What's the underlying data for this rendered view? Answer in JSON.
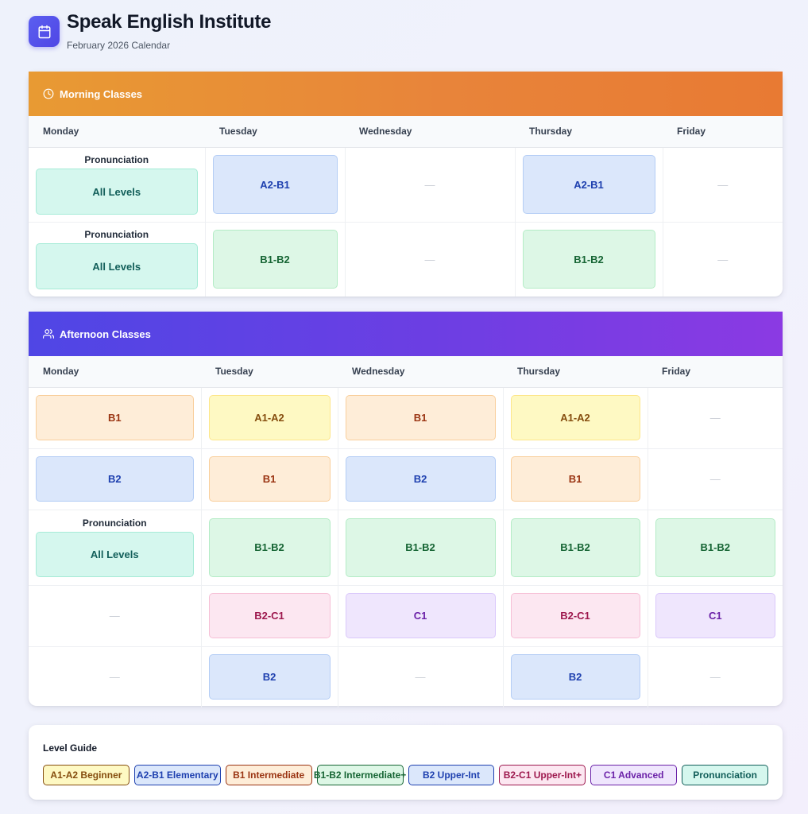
{
  "app": {
    "title": "Speak English Institute",
    "subtitle": "February 2026 Calendar",
    "accent": "#4f46e5"
  },
  "days": [
    "Monday",
    "Tuesday",
    "Wednesday",
    "Thursday",
    "Friday"
  ],
  "morning": {
    "title": "Morning Classes",
    "icon": "clock-icon",
    "gradient": [
      "#e89a33",
      "#e87a33"
    ],
    "rows": [
      [
        {
          "label": "Pronunciation",
          "level": "All Levels",
          "type": "pr"
        },
        {
          "level": "A2-B1",
          "type": "a2"
        },
        {
          "empty": "—"
        },
        {
          "level": "A2-B1",
          "type": "a2"
        },
        {
          "empty": "—"
        }
      ],
      [
        {
          "label": "Pronunciation",
          "level": "All Levels",
          "type": "pr"
        },
        {
          "level": "B1-B2",
          "type": "b1b2"
        },
        {
          "empty": "—"
        },
        {
          "level": "B1-B2",
          "type": "b1b2"
        },
        {
          "empty": "—"
        }
      ]
    ]
  },
  "afternoon": {
    "title": "Afternoon Classes",
    "icon": "users-icon",
    "gradient": [
      "#4f46e5",
      "#8b3ae3"
    ],
    "rows": [
      [
        {
          "level": "B1",
          "type": "b1"
        },
        {
          "level": "A1-A2",
          "type": "a1"
        },
        {
          "level": "B1",
          "type": "b1"
        },
        {
          "level": "A1-A2",
          "type": "a1"
        },
        {
          "empty": "—"
        }
      ],
      [
        {
          "level": "B2",
          "type": "b2"
        },
        {
          "level": "B1",
          "type": "b1"
        },
        {
          "level": "B2",
          "type": "b2"
        },
        {
          "level": "B1",
          "type": "b1"
        },
        {
          "empty": "—"
        }
      ],
      [
        {
          "label": "Pronunciation",
          "level": "All Levels",
          "type": "pr"
        },
        {
          "level": "B1-B2",
          "type": "b1b2"
        },
        {
          "level": "B1-B2",
          "type": "b1b2"
        },
        {
          "level": "B1-B2",
          "type": "b1b2"
        },
        {
          "level": "B1-B2",
          "type": "b1b2"
        }
      ],
      [
        {
          "empty": "—"
        },
        {
          "level": "B2-C1",
          "type": "b2c1"
        },
        {
          "level": "C1",
          "type": "c1"
        },
        {
          "level": "B2-C1",
          "type": "b2c1"
        },
        {
          "level": "C1",
          "type": "c1"
        }
      ],
      [
        {
          "empty": "—"
        },
        {
          "level": "B2",
          "type": "b2"
        },
        {
          "empty": "—"
        },
        {
          "level": "B2",
          "type": "b2"
        },
        {
          "empty": "—"
        }
      ]
    ]
  },
  "legend": {
    "title": "Level Guide",
    "items": [
      {
        "label": "A1-A2 Beginner",
        "type": "a1"
      },
      {
        "label": "A2-B1 Elementary",
        "type": "a2"
      },
      {
        "label": "B1 Intermediate",
        "type": "b1"
      },
      {
        "label": "B1-B2 Intermediate+",
        "type": "b1b2"
      },
      {
        "label": "B2 Upper-Int",
        "type": "b2"
      },
      {
        "label": "B2-C1 Upper-Int+",
        "type": "b2c1"
      },
      {
        "label": "C1 Advanced",
        "type": "c1"
      },
      {
        "label": "Pronunciation",
        "type": "pr"
      }
    ]
  },
  "level_colors": {
    "a1": "#fef9c3",
    "a2": "#dbe7fb",
    "b1": "#feedd8",
    "b1b2": "#ddf7e6",
    "b2": "#dbe7fb",
    "b2c1": "#fce7f1",
    "c1": "#efe6fd",
    "pr": "#d5f7ee"
  }
}
